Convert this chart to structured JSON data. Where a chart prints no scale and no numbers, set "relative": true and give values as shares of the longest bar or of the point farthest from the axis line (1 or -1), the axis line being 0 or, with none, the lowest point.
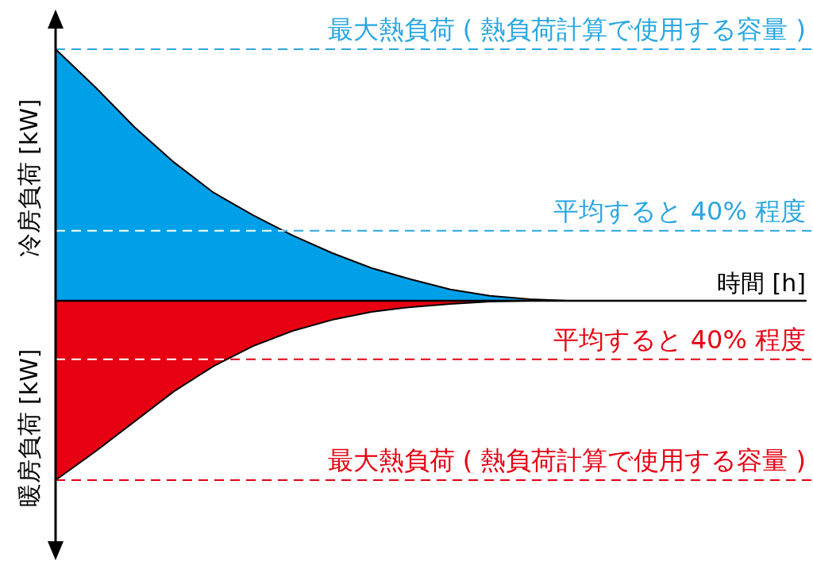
{
  "chart_data": {
    "type": "area",
    "relative": true,
    "xlabel": "時間 [h]",
    "ylabel": "冷房負荷 [kW]",
    "annotations": [
      "暖房負荷 [kW]"
    ],
    "categories": [
      null,
      null,
      null,
      null,
      null,
      null,
      null,
      null,
      null,
      null,
      null,
      null,
      null,
      null,
      null,
      null,
      null,
      null,
      null,
      null
    ],
    "series": [
      {
        "color": "#00a0e9",
        "values": [
          1.0,
          0.85,
          0.69,
          0.55,
          0.43,
          0.34,
          0.26,
          0.19,
          0.13,
          0.085,
          0.045,
          0.02,
          0.006,
          0,
          0,
          0,
          0,
          0,
          0,
          0
        ]
      },
      {
        "color": "#e60012",
        "values": [
          -0.713,
          -0.6,
          -0.48,
          -0.36,
          -0.26,
          -0.18,
          -0.12,
          -0.076,
          -0.044,
          -0.025,
          -0.013,
          -0.003,
          0,
          0,
          0,
          0,
          0,
          0,
          0,
          0
        ]
      }
    ],
    "ref_lines": [
      {
        "axis": "y",
        "value": 1.0,
        "label": "最大熱負荷 ( 熱負荷計算で使用する容量 )",
        "color": "#2aa7e1",
        "line_style": "dashed"
      },
      {
        "axis": "y",
        "value": 0.278,
        "label": "平均すると 40% 程度",
        "color": "#2aa7e1",
        "line_style": "dashed"
      },
      {
        "axis": "y",
        "value": -0.233,
        "label": "平均すると 40% 程度",
        "color": "#e60012",
        "line_style": "dashed"
      },
      {
        "axis": "y",
        "value": -0.713,
        "label": "最大熱負荷 ( 熱負荷計算で使用する容量 )",
        "color": "#e60012",
        "line_style": "dashed"
      }
    ]
  }
}
